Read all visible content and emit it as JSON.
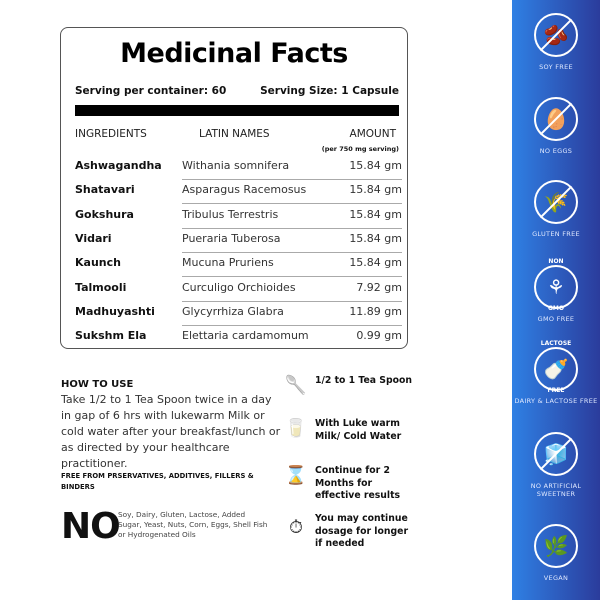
{
  "facts": {
    "title": "Medicinal Facts",
    "serving_per_container": "Serving per container: 60",
    "serving_size": "Serving Size: 1 Capsule",
    "headers": {
      "ingredients": "INGREDIENTS",
      "latin": "LATIN NAMES",
      "amount": "AMOUNT",
      "amount_note": "(per 750 mg serving)"
    },
    "rows": [
      {
        "ingredient": "Ashwagandha",
        "latin": "Withania somnifera",
        "amount": "15.84 gm"
      },
      {
        "ingredient": "Shatavari",
        "latin": "Asparagus Racemosus",
        "amount": "15.84 gm"
      },
      {
        "ingredient": "Gokshura",
        "latin": "Tribulus Terrestris",
        "amount": "15.84 gm"
      },
      {
        "ingredient": "Vidari",
        "latin": "Pueraria Tuberosa",
        "amount": "15.84 gm"
      },
      {
        "ingredient": "Kaunch",
        "latin": "Mucuna Pruriens",
        "amount": "15.84 gm"
      },
      {
        "ingredient": "Talmooli",
        "latin": "Curculigo Orchioides",
        "amount": "7.92 gm"
      },
      {
        "ingredient": "Madhuyashti",
        "latin": "Glycyrrhiza Glabra",
        "amount": "11.89 gm"
      },
      {
        "ingredient": "Sukshm Ela",
        "latin": "Elettaria cardamomum",
        "amount": "0.99 gm"
      }
    ]
  },
  "how_to_use": {
    "title": "HOW TO USE",
    "body": "Take 1/2 to 1 Tea Spoon twice in a day in gap of 6 hrs with lukewarm Milk or cold water after your breakfast/lunch or as directed by your healthcare practitioner.",
    "free_from": "FREE FROM PRSERVATIVES, ADDITIVES, FILLERS & BINDERS",
    "no_big": "NO",
    "no_text": "Soy, Dairy, Gluten, Lactose, Added Sugar, Yeast, Nuts, Corn, Eggs, Shell Fish or Hydrogenated Oils"
  },
  "steps": [
    {
      "icon": "spoon-icon",
      "text": "1/2 to 1 Tea Spoon"
    },
    {
      "icon": "glass-icon",
      "text": "With Luke warm Milk/ Cold Water"
    },
    {
      "icon": "hourglass-icon",
      "text": "Continue for 2 Months for effective results"
    },
    {
      "icon": "stopwatch-icon",
      "text": "You may continue dosage for longer if needed"
    }
  ],
  "badges": [
    {
      "icon": "soy-icon",
      "label": "SOY FREE"
    },
    {
      "icon": "egg-icon",
      "label": "NO EGGS"
    },
    {
      "icon": "wheat-icon",
      "label": "GLUTEN FREE"
    },
    {
      "icon": "non-gmo-icon",
      "label": "GMO FREE",
      "ring_top": "NON",
      "ring_bottom": "GMO"
    },
    {
      "icon": "milk-bottle-icon",
      "label": "DAIRY & LACTOSE FREE",
      "ring_top": "LACTOSE",
      "ring_bottom": "FREE"
    },
    {
      "icon": "sugar-cubes-icon",
      "label": "NO ARTIFICIAL SWEETNER"
    },
    {
      "icon": "leaf-icon",
      "label": "VEGAN"
    }
  ],
  "colors": {
    "sidebar_left": "#2f80e4",
    "sidebar_right": "#2b3c9c"
  }
}
